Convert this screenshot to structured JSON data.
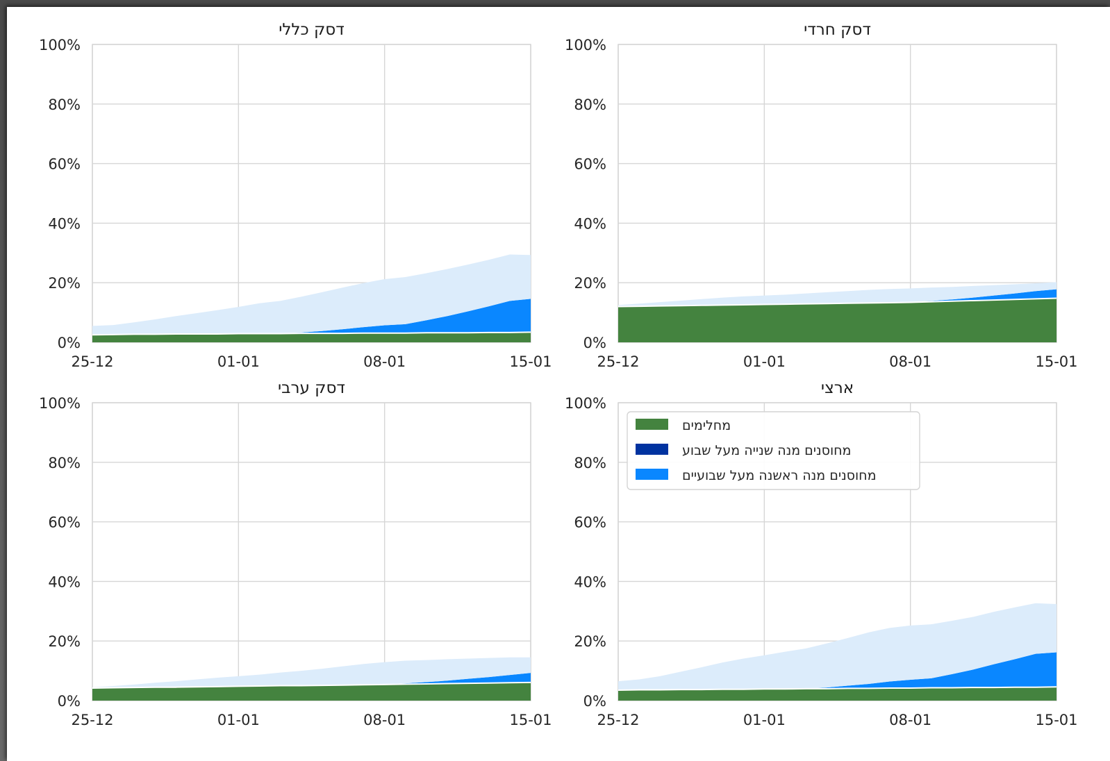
{
  "colors": {
    "recovered": "#44833f",
    "second_dose": "#0033a0",
    "first_dose": "#0a87ff",
    "total_light": "#dcecfb",
    "grid": "#d6d6d6",
    "axis_frame": "#cfcfcf"
  },
  "legend": {
    "items": [
      {
        "label": "מחלימים",
        "color": "#44833f"
      },
      {
        "label": "מחוסנים מנה שנייה מעל שבוע",
        "color": "#0033a0"
      },
      {
        "label": "מחוסנים מנה ראשנה מעל שבועיים",
        "color": "#0a87ff"
      }
    ]
  },
  "chart_data": [
    {
      "type": "area",
      "title": "דסק כללי",
      "x_tick_labels": [
        "25-12",
        "01-01",
        "08-01",
        "15-01"
      ],
      "y_tick_labels": [
        "0%",
        "20%",
        "40%",
        "60%",
        "80%",
        "100%"
      ],
      "ylim": [
        0,
        100
      ],
      "x": [
        0,
        1,
        2,
        3,
        4,
        5,
        6,
        7,
        8,
        9,
        10,
        11,
        12,
        13,
        14,
        15,
        16,
        17,
        18,
        19,
        20,
        21
      ],
      "series": [
        {
          "name": "מחלימים",
          "values": [
            2.5,
            2.6,
            2.7,
            2.7,
            2.8,
            2.8,
            2.8,
            2.9,
            2.9,
            2.9,
            3.0,
            3.0,
            3.0,
            3.1,
            3.1,
            3.1,
            3.2,
            3.2,
            3.2,
            3.3,
            3.3,
            3.4
          ]
        },
        {
          "name": "מחוסנים מנה שנייה מעל שבוע",
          "values": [
            0,
            0,
            0,
            0,
            0,
            0,
            0,
            0,
            0,
            0,
            0,
            0,
            0,
            0,
            0,
            0,
            0,
            0,
            0,
            0,
            0,
            0
          ]
        },
        {
          "name": "מחוסנים מנה ראשנה מעל שבועיים",
          "values": [
            0,
            0,
            0,
            0,
            0,
            0,
            0,
            0,
            0,
            0,
            0.3,
            0.8,
            1.4,
            2.0,
            2.6,
            3.0,
            4.2,
            5.6,
            7.2,
            8.8,
            10.6,
            11.2
          ]
        },
        {
          "name": "",
          "values": [
            3.0,
            3.2,
            4.0,
            5.0,
            6.0,
            7.0,
            8.0,
            9.0,
            10.2,
            11.0,
            12.0,
            13.0,
            14.0,
            14.8,
            15.5,
            15.8,
            15.8,
            15.8,
            15.7,
            15.6,
            15.6,
            14.7
          ]
        }
      ]
    },
    {
      "type": "area",
      "title": "דסק חרדי",
      "x_tick_labels": [
        "25-12",
        "01-01",
        "08-01",
        "15-01"
      ],
      "y_tick_labels": [
        "0%",
        "20%",
        "40%",
        "60%",
        "80%",
        "100%"
      ],
      "ylim": [
        0,
        100
      ],
      "x": [
        0,
        1,
        2,
        3,
        4,
        5,
        6,
        7,
        8,
        9,
        10,
        11,
        12,
        13,
        14,
        15,
        16,
        17,
        18,
        19,
        20,
        21
      ],
      "series": [
        {
          "name": "מחלימים",
          "values": [
            12.0,
            12.1,
            12.2,
            12.3,
            12.4,
            12.5,
            12.6,
            12.7,
            12.8,
            12.9,
            13.0,
            13.1,
            13.2,
            13.3,
            13.4,
            13.6,
            13.8,
            14.0,
            14.2,
            14.4,
            14.6,
            14.8
          ]
        },
        {
          "name": "מחוסנים מנה שנייה מעל שבוע",
          "values": [
            0,
            0,
            0,
            0,
            0,
            0,
            0,
            0,
            0,
            0,
            0,
            0,
            0,
            0,
            0,
            0,
            0,
            0,
            0,
            0,
            0,
            0
          ]
        },
        {
          "name": "מחוסנים מנה ראשנה מעל שבועיים",
          "values": [
            0,
            0,
            0,
            0,
            0,
            0,
            0,
            0,
            0,
            0,
            0,
            0,
            0,
            0,
            0.1,
            0.3,
            0.6,
            1.0,
            1.5,
            2.0,
            2.6,
            3.0
          ]
        },
        {
          "name": "",
          "values": [
            0.5,
            0.9,
            1.3,
            1.7,
            2.1,
            2.5,
            2.8,
            3.0,
            3.2,
            3.5,
            3.8,
            4.1,
            4.4,
            4.6,
            4.6,
            4.5,
            4.2,
            3.9,
            3.5,
            3.1,
            2.6,
            2.4
          ]
        }
      ]
    },
    {
      "type": "area",
      "title": "דסק ערבי",
      "x_tick_labels": [
        "25-12",
        "01-01",
        "08-01",
        "15-01"
      ],
      "y_tick_labels": [
        "0%",
        "20%",
        "40%",
        "60%",
        "80%",
        "100%"
      ],
      "ylim": [
        0,
        100
      ],
      "x": [
        0,
        1,
        2,
        3,
        4,
        5,
        6,
        7,
        8,
        9,
        10,
        11,
        12,
        13,
        14,
        15,
        16,
        17,
        18,
        19,
        20,
        21
      ],
      "series": [
        {
          "name": "מחלימים",
          "values": [
            4.2,
            4.3,
            4.4,
            4.5,
            4.5,
            4.6,
            4.7,
            4.8,
            4.9,
            5.0,
            5.0,
            5.1,
            5.2,
            5.3,
            5.4,
            5.5,
            5.6,
            5.7,
            5.8,
            5.9,
            6.0,
            6.1
          ]
        },
        {
          "name": "מחוסנים מנה שנייה מעל שבוע",
          "values": [
            0,
            0,
            0,
            0,
            0,
            0,
            0,
            0,
            0,
            0,
            0,
            0,
            0,
            0,
            0,
            0,
            0,
            0,
            0,
            0,
            0,
            0
          ]
        },
        {
          "name": "מחוסנים מנה ראשנה מעל שבועיים",
          "values": [
            0,
            0,
            0,
            0,
            0,
            0,
            0,
            0,
            0,
            0,
            0,
            0,
            0,
            0,
            0.1,
            0.3,
            0.6,
            1.0,
            1.5,
            2.0,
            2.6,
            3.2
          ]
        },
        {
          "name": "",
          "values": [
            0.3,
            0.6,
            1.0,
            1.5,
            2.0,
            2.5,
            3.0,
            3.4,
            3.8,
            4.4,
            5.0,
            5.6,
            6.3,
            7.0,
            7.4,
            7.6,
            7.4,
            7.2,
            6.8,
            6.4,
            5.9,
            5.2
          ]
        }
      ]
    },
    {
      "type": "area",
      "title": "ארצי",
      "x_tick_labels": [
        "25-12",
        "01-01",
        "08-01",
        "15-01"
      ],
      "y_tick_labels": [
        "0%",
        "20%",
        "40%",
        "60%",
        "80%",
        "100%"
      ],
      "ylim": [
        0,
        100
      ],
      "x": [
        0,
        1,
        2,
        3,
        4,
        5,
        6,
        7,
        8,
        9,
        10,
        11,
        12,
        13,
        14,
        15,
        16,
        17,
        18,
        19,
        20,
        21
      ],
      "series": [
        {
          "name": "מחלימים",
          "values": [
            3.5,
            3.6,
            3.6,
            3.7,
            3.7,
            3.8,
            3.8,
            3.9,
            3.9,
            4.0,
            4.0,
            4.1,
            4.1,
            4.2,
            4.2,
            4.3,
            4.3,
            4.4,
            4.4,
            4.5,
            4.5,
            4.6
          ]
        },
        {
          "name": "מחוסנים מנה שנייה מעל שבוע",
          "values": [
            0,
            0,
            0,
            0,
            0,
            0,
            0,
            0,
            0,
            0,
            0,
            0,
            0,
            0,
            0,
            0,
            0,
            0,
            0,
            0,
            0,
            0
          ]
        },
        {
          "name": "מחוסנים מנה ראשנה מעל שבועיים",
          "values": [
            0,
            0,
            0,
            0,
            0,
            0,
            0,
            0,
            0,
            0,
            0.4,
            0.9,
            1.5,
            2.2,
            2.8,
            3.2,
            4.6,
            6.0,
            7.8,
            9.4,
            11.2,
            11.6
          ]
        },
        {
          "name": "",
          "values": [
            3.0,
            3.5,
            4.6,
            6.0,
            7.5,
            9.0,
            10.3,
            11.3,
            12.5,
            13.5,
            14.8,
            16.0,
            17.3,
            18.0,
            18.2,
            18.1,
            17.9,
            17.7,
            17.6,
            17.4,
            17.0,
            16.2
          ]
        }
      ]
    }
  ]
}
